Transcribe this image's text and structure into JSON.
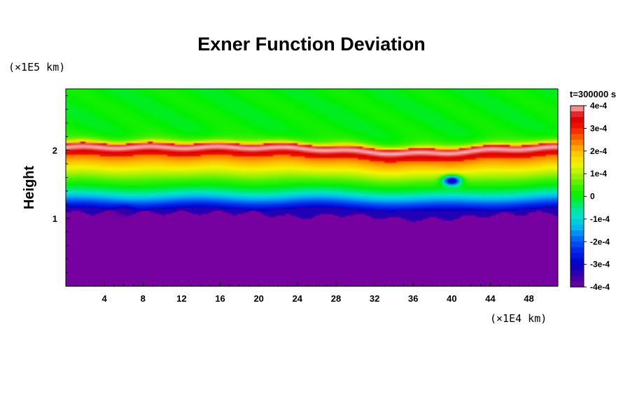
{
  "chart_data": {
    "type": "heatmap",
    "title": "Exner Function Deviation",
    "ylabel": "Height",
    "y_unit": "(×1E5 km)",
    "x_unit": "(×1E4 km)",
    "xlim": [
      0,
      51
    ],
    "ylim": [
      0,
      2.9
    ],
    "x_ticks": [
      4,
      8,
      12,
      16,
      20,
      24,
      28,
      32,
      36,
      40,
      44,
      48
    ],
    "x_tick_labels": [
      "4",
      "8",
      "12",
      "16",
      "20",
      "24",
      "28",
      "32",
      "36",
      "40",
      "44",
      "48"
    ],
    "y_ticks": [
      1,
      2
    ],
    "y_tick_labels": [
      "1",
      "2"
    ],
    "colorbar": {
      "title": "t=300000 s",
      "range": [
        -0.0004,
        0.0004
      ],
      "ticks": [
        0.0004,
        0.0003,
        0.0002,
        0.0001,
        0,
        -0.0001,
        -0.0002,
        -0.0003,
        -0.0004
      ],
      "tick_labels": [
        "4e-4",
        "3e-4",
        "2e-4",
        "1e-4",
        "0",
        "-1e-4",
        "-2e-4",
        "-3e-4",
        "-4e-4"
      ]
    },
    "field_description": [
      {
        "height_range": [
          2.3,
          2.9
        ],
        "value": 0
      },
      {
        "height_range": [
          2.0,
          2.1
        ],
        "value": 0.0004
      },
      {
        "height_range": [
          1.8,
          2.0
        ],
        "value": 0.0003
      },
      {
        "height_range": [
          1.4,
          1.8
        ],
        "value": 5e-05
      },
      {
        "height_range": [
          1.1,
          1.4
        ],
        "value": -0.00025
      },
      {
        "height_range": [
          0.0,
          1.0
        ],
        "value": -0.0004
      }
    ],
    "features": [
      {
        "x": 40,
        "y": 1.55,
        "value": -0.00035
      },
      {
        "x": 6,
        "y": 1.1,
        "value": -0.00035
      }
    ]
  }
}
